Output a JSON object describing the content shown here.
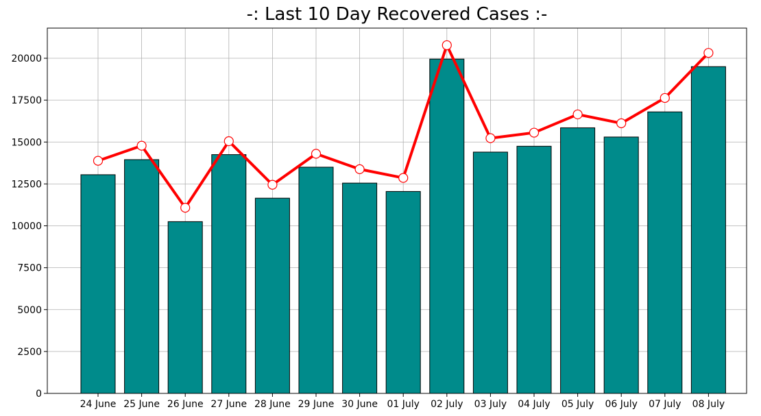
{
  "chart_data": {
    "type": "bar",
    "title": "-: Last 10 Day Recovered Cases :-",
    "xlabel": "",
    "ylabel": "",
    "categories": [
      "24 June",
      "25 June",
      "26 June",
      "27 June",
      "28 June",
      "29 June",
      "30 June",
      "01 July",
      "02 July",
      "03 July",
      "04 July",
      "05 July",
      "06 July",
      "07 July",
      "08 July"
    ],
    "series": [
      {
        "type": "bar",
        "values": [
          13050,
          13950,
          10250,
          14250,
          11650,
          13500,
          12550,
          12050,
          19950,
          14400,
          14750,
          15850,
          15300,
          16800,
          19500
        ],
        "color": "#008b8b",
        "edge_color": "#000000"
      },
      {
        "type": "line",
        "values": [
          13880,
          14780,
          11080,
          15050,
          12450,
          14300,
          13380,
          12860,
          20780,
          15230,
          15560,
          16650,
          16120,
          17630,
          20320
        ],
        "color": "#ff0000",
        "marker": "circle",
        "marker_face": "#ffffff"
      }
    ],
    "ylim": [
      0,
      21800
    ],
    "yticks": [
      0,
      2500,
      5000,
      7500,
      10000,
      12500,
      15000,
      17500,
      20000
    ],
    "grid": true
  }
}
